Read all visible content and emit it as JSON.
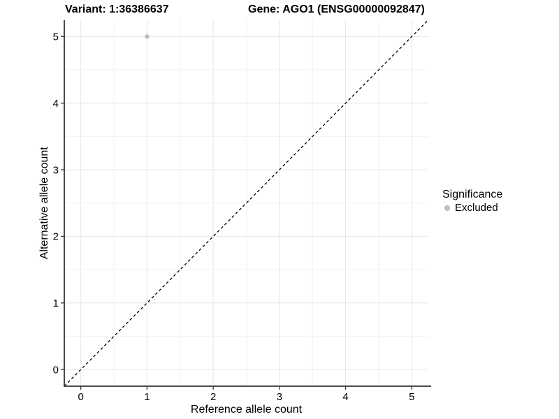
{
  "chart_data": {
    "type": "scatter",
    "titles": [
      "Variant: 1:36386637",
      "Gene: AGO1 (ENSG00000092847)"
    ],
    "xlabel": "Reference allele count",
    "ylabel": "Alternative allele count",
    "xlim": [
      -0.25,
      5.25
    ],
    "ylim": [
      -0.25,
      5.25
    ],
    "xticks": [
      0,
      1,
      2,
      3,
      4,
      5
    ],
    "yticks": [
      0,
      1,
      2,
      3,
      4,
      5
    ],
    "x_minor": [
      0.5,
      1.5,
      2.5,
      3.5,
      4.5
    ],
    "y_minor": [
      0.5,
      1.5,
      2.5,
      3.5,
      4.5
    ],
    "grid": "major+minor",
    "legend_position": "right",
    "series": [
      {
        "name": "Excluded",
        "color": "#bdbdbd",
        "points": [
          {
            "x": 1,
            "y": 5
          }
        ]
      }
    ],
    "reference_line": {
      "type": "identity",
      "x1": -0.25,
      "y1": -0.25,
      "x2": 5.25,
      "y2": 5.25,
      "style": "dashed",
      "color": "#000000"
    }
  },
  "legend": {
    "title": "Significance",
    "items": [
      {
        "label": "Excluded",
        "color": "#bdbdbd"
      }
    ]
  },
  "colors": {
    "background": "#ffffff",
    "grid_major": "#e6e6e6",
    "grid_minor": "#f3f3f3",
    "axis": "#333333",
    "tick": "#333333",
    "text": "#000000",
    "point": "#bdbdbd",
    "dashed_line": "#000000"
  }
}
